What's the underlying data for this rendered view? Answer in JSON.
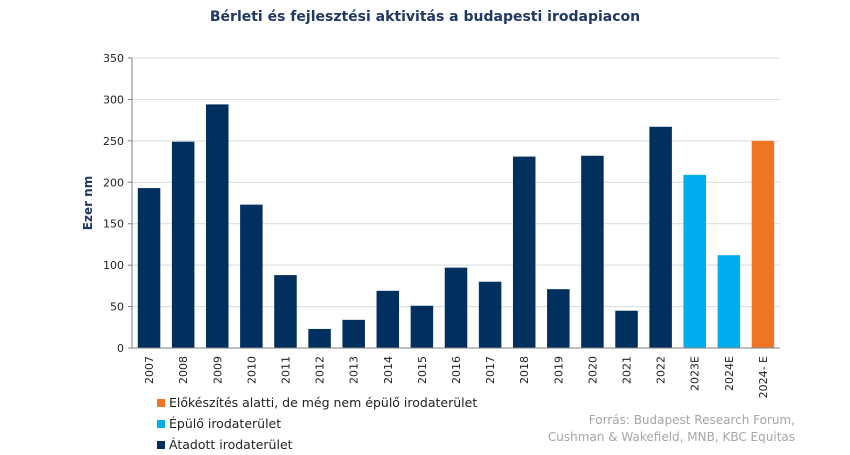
{
  "chart_data": {
    "type": "bar",
    "title": "Bérleti és fejlesztési aktivitás a budapesti irodapiacon",
    "ylabel": "Ezer nm",
    "xlabel": "",
    "ylim": [
      0,
      350
    ],
    "yticks": [
      0,
      50,
      100,
      150,
      200,
      250,
      300,
      350
    ],
    "grid": true,
    "categories": [
      "2007",
      "2008",
      "2009",
      "2010",
      "2011",
      "2012",
      "2013",
      "2014",
      "2015",
      "2016",
      "2017",
      "2018",
      "2019",
      "2020",
      "2021",
      "2022",
      "2023E",
      "2024E",
      "2024- E"
    ],
    "values": [
      193,
      249,
      294,
      173,
      88,
      23,
      34,
      69,
      51,
      97,
      80,
      231,
      71,
      232,
      45,
      267,
      209,
      112,
      250
    ],
    "series_index": [
      2,
      2,
      2,
      2,
      2,
      2,
      2,
      2,
      2,
      2,
      2,
      2,
      2,
      2,
      2,
      2,
      1,
      1,
      0
    ],
    "legend": [
      {
        "name": "Előkészítés alatti, de még nem épülő irodaterület",
        "color": "#f07425"
      },
      {
        "name": "Épülő irodaterület",
        "color": "#00adef"
      },
      {
        "name": "Átadott irodaterület",
        "color": "#02305e"
      }
    ],
    "legend_position": "bottom-left"
  },
  "source_lines": [
    "Forrás: Budapest Research Forum,",
    "Cushman & Wakefield, MNB, KBC Equitas"
  ]
}
